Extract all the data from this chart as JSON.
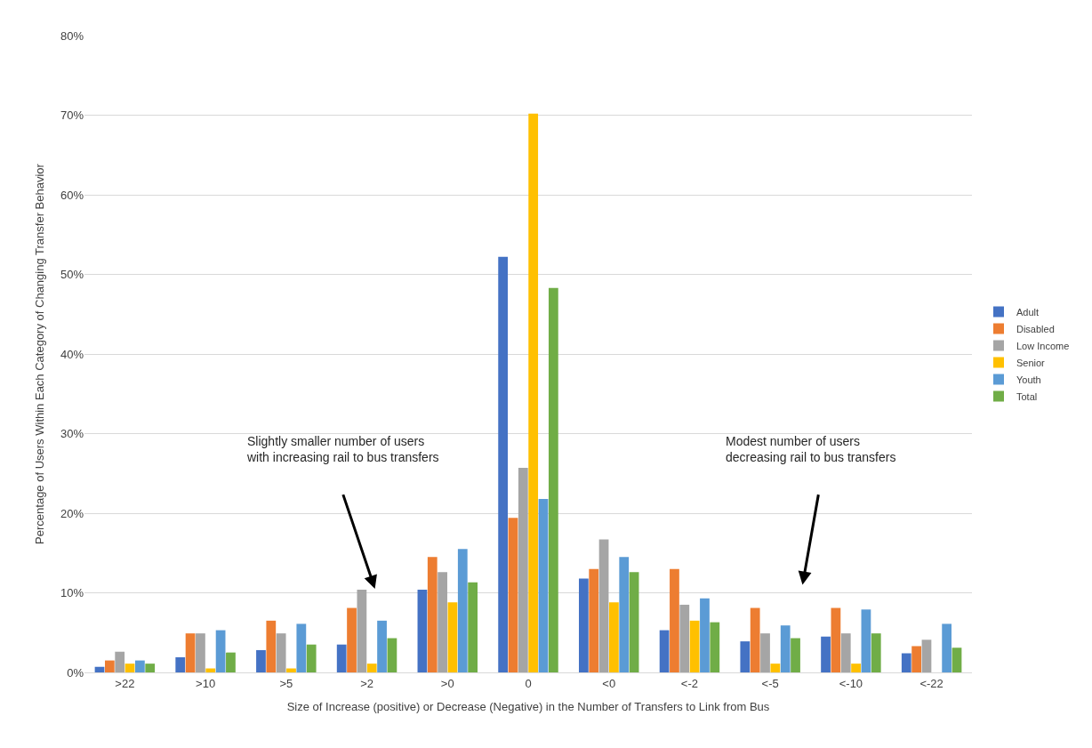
{
  "chart_data": {
    "type": "bar",
    "xlabel": "Size of Increase (positive) or Decrease (Negative) in the Number of Transfers to Link from Bus",
    "ylabel": "Percentage of Users Within Each Category of Changing Transfer Behavior",
    "categories": [
      ">22",
      ">10",
      ">5",
      ">2",
      ">0",
      "0",
      "<0",
      "<-2",
      "<-5",
      "<-10",
      "<-22"
    ],
    "series": [
      {
        "name": "Adult",
        "color": "#4472c4",
        "values": [
          0.7,
          1.9,
          2.8,
          3.5,
          10.4,
          52.2,
          11.8,
          5.3,
          3.9,
          4.5,
          2.4
        ]
      },
      {
        "name": "Disabled",
        "color": "#ed7d31",
        "values": [
          1.5,
          4.9,
          6.5,
          8.1,
          14.5,
          19.4,
          13.0,
          13.0,
          8.1,
          8.1,
          3.3
        ]
      },
      {
        "name": "Low Income",
        "color": "#a5a5a5",
        "values": [
          2.6,
          4.9,
          4.9,
          10.4,
          12.6,
          25.7,
          16.7,
          8.5,
          4.9,
          4.9,
          4.1
        ]
      },
      {
        "name": "Senior",
        "color": "#ffc000",
        "values": [
          1.1,
          0.5,
          0.5,
          1.1,
          8.8,
          70.2,
          8.8,
          6.5,
          1.1,
          1.1,
          null
        ]
      },
      {
        "name": "Youth",
        "color": "#5b9bd5",
        "values": [
          1.5,
          5.3,
          6.1,
          6.5,
          15.5,
          21.8,
          14.5,
          9.3,
          5.9,
          7.9,
          6.1
        ]
      },
      {
        "name": "Total",
        "color": "#70ad47",
        "values": [
          1.1,
          2.5,
          3.5,
          4.3,
          11.3,
          48.3,
          12.6,
          6.3,
          4.3,
          4.9,
          3.1
        ]
      }
    ],
    "ylim": [
      0,
      80
    ],
    "yticks": [
      {
        "value": 0,
        "label": "0%"
      },
      {
        "value": 10,
        "label": "10%"
      },
      {
        "value": 20,
        "label": "20%"
      },
      {
        "value": 30,
        "label": "30%"
      },
      {
        "value": 40,
        "label": "40%"
      },
      {
        "value": 50,
        "label": "50%"
      },
      {
        "value": 60,
        "label": "60%"
      },
      {
        "value": 70,
        "label": "70%"
      },
      {
        "value": 80,
        "label": "80%"
      }
    ],
    "grid": "y",
    "legend": "right",
    "annotations": [
      "Slightly smaller number of users\nwith increasing rail to bus transfers",
      "Modest number of users\ndecreasing rail to bus transfers"
    ]
  }
}
